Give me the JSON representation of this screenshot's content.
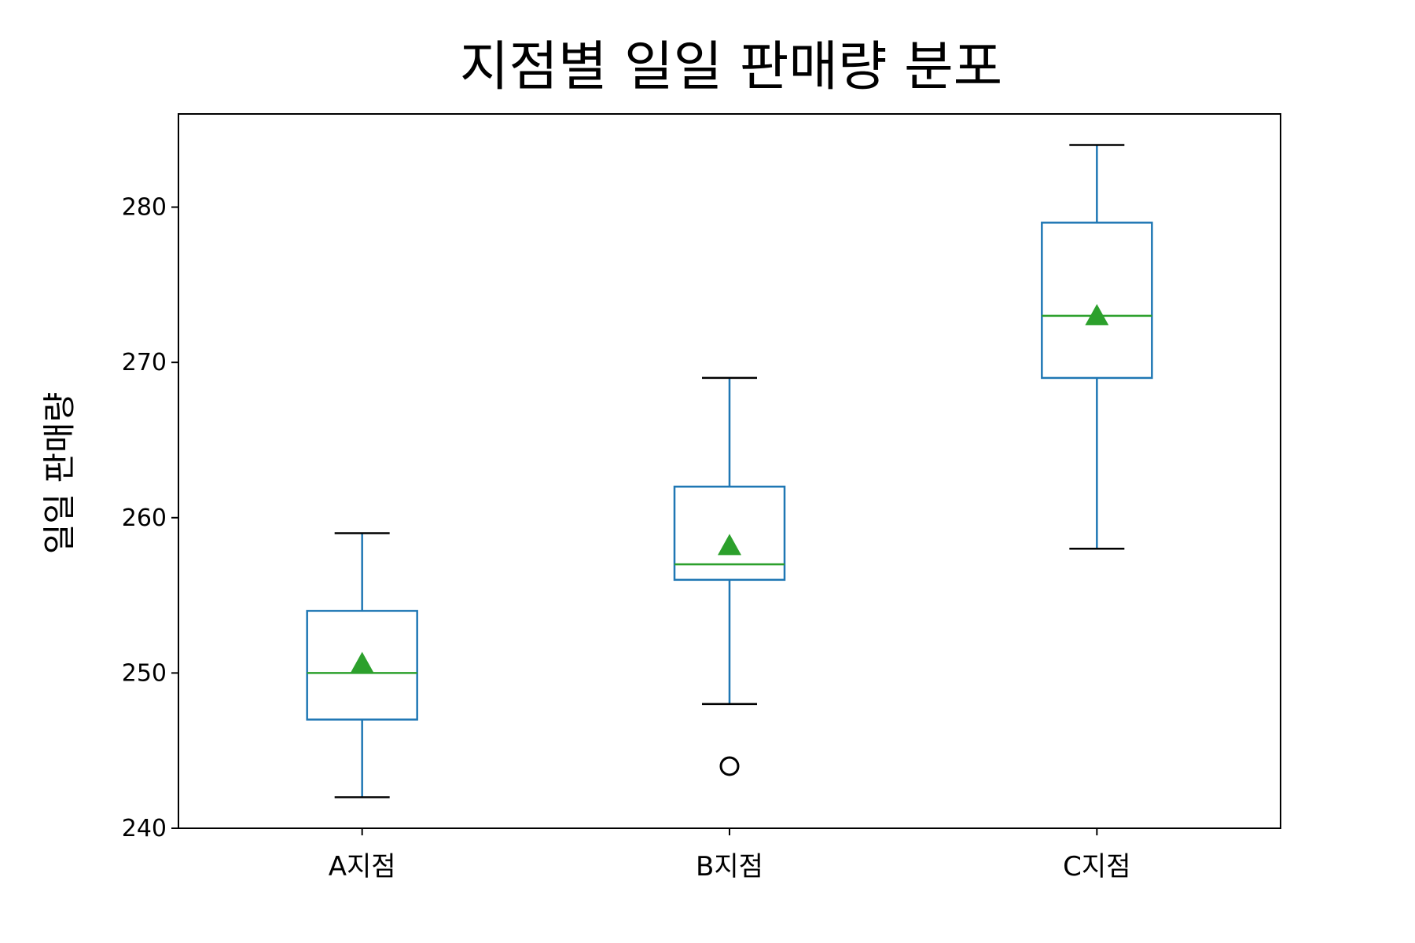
{
  "chart_data": {
    "type": "box",
    "title": "지점별 일일 판매량 분포",
    "xlabel": "",
    "ylabel": "일일 판매량",
    "ylim": [
      240,
      286
    ],
    "yticks": [
      240,
      250,
      260,
      270,
      280
    ],
    "categories": [
      "A지점",
      "B지점",
      "C지점"
    ],
    "boxes": [
      {
        "category": "A지점",
        "whisker_low": 242,
        "q1": 247,
        "median": 250,
        "q3": 254,
        "whisker_high": 259,
        "mean": 250.6,
        "outliers": []
      },
      {
        "category": "B지점",
        "whisker_low": 248,
        "q1": 256,
        "median": 257,
        "q3": 262,
        "whisker_high": 269,
        "mean": 258.2,
        "outliers": [
          244
        ]
      },
      {
        "category": "C지점",
        "whisker_low": 258,
        "q1": 269,
        "median": 273,
        "q3": 279,
        "whisker_high": 284,
        "mean": 273,
        "outliers": []
      }
    ],
    "grid": false,
    "colors": {
      "box": "#1f77b4",
      "median": "#2ca02c",
      "mean": "#2ca02c",
      "whisker_cap": "#000000",
      "outlier": "#000000"
    }
  }
}
